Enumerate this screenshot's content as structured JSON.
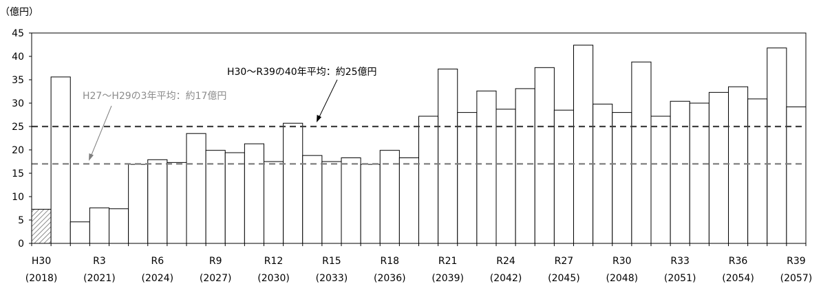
{
  "chart_data": {
    "type": "bar",
    "unit_label": "（億円）",
    "ylim": [
      0,
      45
    ],
    "yticks": [
      0,
      5,
      10,
      15,
      20,
      25,
      30,
      35,
      40,
      45
    ],
    "values": [
      7.3,
      35.6,
      4.6,
      7.6,
      7.4,
      16.9,
      17.9,
      17.3,
      23.5,
      19.9,
      19.4,
      21.3,
      17.5,
      25.7,
      18.8,
      17.5,
      18.3,
      16.9,
      19.9,
      18.3,
      27.2,
      37.3,
      28.0,
      32.6,
      28.7,
      33.1,
      37.6,
      28.5,
      42.4,
      29.8,
      28.0,
      38.8,
      27.2,
      30.4,
      30.0,
      32.3,
      33.5,
      30.9,
      41.8,
      29.2
    ],
    "hatched_bar_index": 0,
    "tick_labels": [
      {
        "index": 0,
        "label": "H30",
        "year": "(2018)"
      },
      {
        "index": 3,
        "label": "R3",
        "year": "(2021)"
      },
      {
        "index": 6,
        "label": "R6",
        "year": "(2024)"
      },
      {
        "index": 9,
        "label": "R9",
        "year": "(2027)"
      },
      {
        "index": 12,
        "label": "R12",
        "year": "(2030)"
      },
      {
        "index": 15,
        "label": "R15",
        "year": "(2033)"
      },
      {
        "index": 18,
        "label": "R18",
        "year": "(2036)"
      },
      {
        "index": 21,
        "label": "R21",
        "year": "(2039)"
      },
      {
        "index": 24,
        "label": "R24",
        "year": "(2042)"
      },
      {
        "index": 27,
        "label": "R27",
        "year": "(2045)"
      },
      {
        "index": 30,
        "label": "R30",
        "year": "(2048)"
      },
      {
        "index": 33,
        "label": "R33",
        "year": "(2051)"
      },
      {
        "index": 36,
        "label": "R36",
        "year": "(2054)"
      },
      {
        "index": 39,
        "label": "R39",
        "year": "(2057)"
      }
    ],
    "reference_lines": [
      {
        "value": 25,
        "label": "H30～R39の40年平均：約25億円",
        "color": "#404040"
      },
      {
        "value": 17,
        "label": "H27～H29の3年平均：約17億円",
        "color": "#7f7f7f"
      }
    ],
    "grid": false,
    "legend": "none"
  }
}
